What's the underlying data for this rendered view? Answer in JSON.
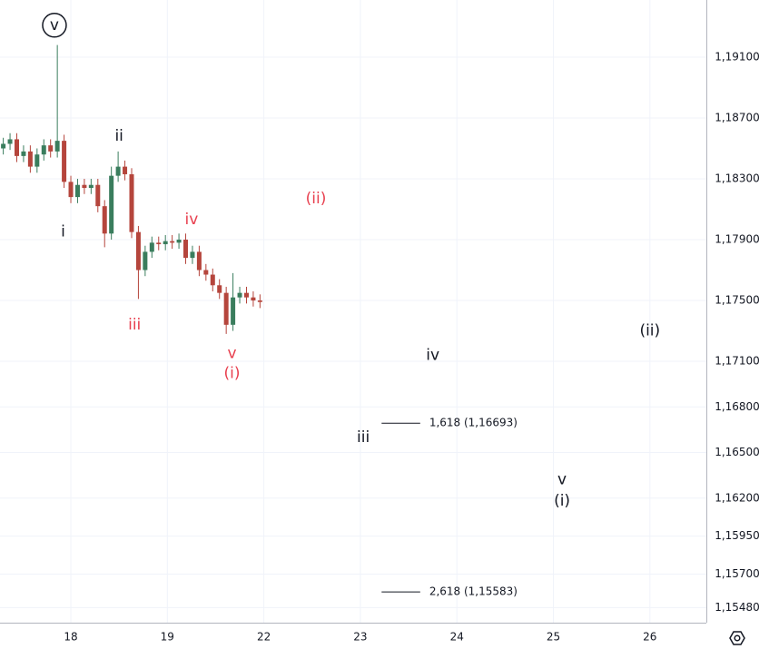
{
  "chart_data": {
    "type": "candlestick",
    "x": [
      -0.7,
      -0.63,
      -0.56,
      -0.49,
      -0.42,
      -0.35,
      -0.28,
      -0.21,
      -0.14,
      -0.07,
      0,
      0.07,
      0.14,
      0.21,
      0.28,
      0.35,
      0.42,
      0.49,
      0.56,
      0.63,
      0.7,
      0.77,
      0.84,
      0.91,
      0.98,
      1.05,
      1.12,
      1.19,
      1.26,
      1.33,
      1.4,
      1.47,
      1.54,
      1.61,
      1.68,
      1.75,
      1.82,
      1.89,
      1.96
    ],
    "open": [
      1.185,
      1.1853,
      1.1856,
      1.1845,
      1.1848,
      1.1838,
      1.1846,
      1.1852,
      1.1848,
      1.1855,
      1.1828,
      1.1818,
      1.1826,
      1.1824,
      1.1826,
      1.1812,
      1.1794,
      1.1832,
      1.1838,
      1.1833,
      1.1795,
      1.177,
      1.1782,
      1.1788,
      1.1787,
      1.1789,
      1.1788,
      1.179,
      1.1778,
      1.1782,
      1.177,
      1.1767,
      1.176,
      1.1755,
      1.1734,
      1.1752,
      1.1755,
      1.1752,
      1.175
    ],
    "high": [
      1.1857,
      1.186,
      1.186,
      1.1852,
      1.1852,
      1.185,
      1.1856,
      1.1856,
      1.1918,
      1.1859,
      1.1832,
      1.183,
      1.183,
      1.183,
      1.183,
      1.1816,
      1.1838,
      1.1848,
      1.1842,
      1.1837,
      1.1799,
      1.1786,
      1.1792,
      1.1792,
      1.1793,
      1.1793,
      1.1794,
      1.1794,
      1.1786,
      1.1786,
      1.1774,
      1.1771,
      1.1764,
      1.1759,
      1.1768,
      1.1759,
      1.1759,
      1.1756,
      1.1754
    ],
    "low": [
      1.1846,
      1.1849,
      1.1841,
      1.1841,
      1.1834,
      1.1834,
      1.1842,
      1.1844,
      1.1844,
      1.1824,
      1.1814,
      1.1814,
      1.182,
      1.182,
      1.1808,
      1.1785,
      1.179,
      1.1828,
      1.1829,
      1.1791,
      1.1751,
      1.1766,
      1.1778,
      1.1783,
      1.1783,
      1.1784,
      1.1784,
      1.1774,
      1.1774,
      1.1766,
      1.1763,
      1.1756,
      1.1751,
      1.1728,
      1.173,
      1.1748,
      1.1748,
      1.1746,
      1.1745
    ],
    "close": [
      1.1853,
      1.1856,
      1.1845,
      1.1848,
      1.1838,
      1.1846,
      1.1852,
      1.1848,
      1.1855,
      1.1828,
      1.1818,
      1.1826,
      1.1824,
      1.1826,
      1.1812,
      1.1794,
      1.1832,
      1.1838,
      1.1833,
      1.1795,
      1.177,
      1.1782,
      1.1788,
      1.1787,
      1.1789,
      1.1788,
      1.179,
      1.1778,
      1.1782,
      1.177,
      1.1767,
      1.176,
      1.1755,
      1.1734,
      1.1752,
      1.1755,
      1.1752,
      1.175,
      1.1749
    ],
    "up_color": "#3a7d5d",
    "down_color": "#b5453c",
    "xlim": [
      -0.734,
      6.585
    ],
    "ylim": [
      1.15381,
      1.19476
    ],
    "xticks": [
      {
        "value": 0,
        "label": "18"
      },
      {
        "value": 1,
        "label": "19"
      },
      {
        "value": 2,
        "label": "22"
      },
      {
        "value": 3,
        "label": "23"
      },
      {
        "value": 4,
        "label": "24"
      },
      {
        "value": 5,
        "label": "25"
      },
      {
        "value": 6,
        "label": "26"
      }
    ],
    "yticks": [
      {
        "value": 1.191,
        "label": "1,19100"
      },
      {
        "value": 1.187,
        "label": "1,18700"
      },
      {
        "value": 1.183,
        "label": "1,18300"
      },
      {
        "value": 1.179,
        "label": "1,17900"
      },
      {
        "value": 1.175,
        "label": "1,17500"
      },
      {
        "value": 1.171,
        "label": "1,17100"
      },
      {
        "value": 1.168,
        "label": "1,16800"
      },
      {
        "value": 1.165,
        "label": "1,16500"
      },
      {
        "value": 1.162,
        "label": "1,16200"
      },
      {
        "value": 1.1595,
        "label": "1,15950"
      },
      {
        "value": 1.157,
        "label": "1,15700"
      },
      {
        "value": 1.1548,
        "label": "1,15480"
      }
    ],
    "grid": true,
    "annotations": [
      {
        "text": "v",
        "x": -0.17,
        "y": 1.1931,
        "color": "#131722",
        "circled": true
      },
      {
        "text": "ii",
        "x": 0.5,
        "y": 1.1858,
        "color": "#131722"
      },
      {
        "text": "i",
        "x": -0.08,
        "y": 1.1795,
        "color": "#131722"
      },
      {
        "text": "iv",
        "x": 1.25,
        "y": 1.1803,
        "color": "#e8404f"
      },
      {
        "text": "(ii)",
        "x": 2.54,
        "y": 1.1817,
        "color": "#e8404f"
      },
      {
        "text": "iii",
        "x": 0.66,
        "y": 1.1734,
        "color": "#e8404f"
      },
      {
        "text": "v",
        "x": 1.67,
        "y": 1.1715,
        "color": "#e8404f"
      },
      {
        "text": "(i)",
        "x": 1.67,
        "y": 1.1702,
        "color": "#e8404f"
      },
      {
        "text": "iv",
        "x": 3.75,
        "y": 1.1714,
        "color": "#131722"
      },
      {
        "text": "(ii)",
        "x": 6.0,
        "y": 1.173,
        "color": "#131722"
      },
      {
        "text": "iii",
        "x": 3.03,
        "y": 1.166,
        "color": "#131722"
      },
      {
        "text": "v",
        "x": 5.09,
        "y": 1.1632,
        "color": "#131722"
      },
      {
        "text": "(i)",
        "x": 5.09,
        "y": 1.1618,
        "color": "#131722"
      }
    ],
    "levels": [
      {
        "label": "1,618 (1,16693)",
        "value": 1.16693,
        "x": [
          3.22,
          3.62
        ]
      },
      {
        "label": "2,618 (1,15583)",
        "value": 1.15583,
        "x": [
          3.22,
          3.62
        ]
      }
    ]
  }
}
